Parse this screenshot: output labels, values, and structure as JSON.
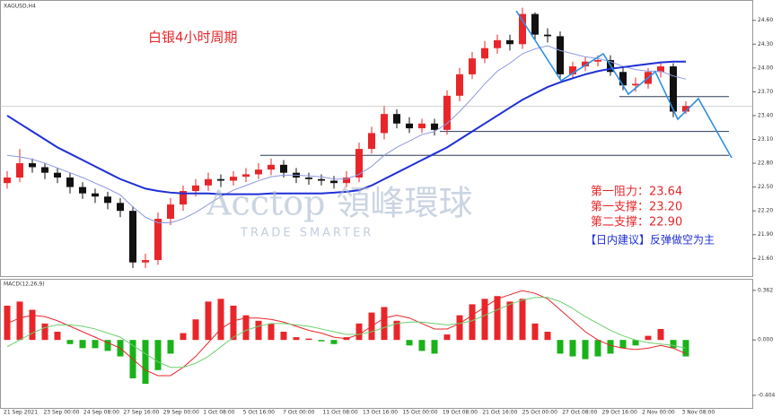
{
  "chart_data": {
    "type": "candlestick",
    "symbol": "XAGUSD,H4",
    "title": "白银4小时周期",
    "annotations": [
      "第一阻力：23.64",
      "第一支撑：23.20",
      "第二支撑：22.90",
      "【日内建议】反弹做空为主"
    ],
    "watermark": "Acctop 領峰環球",
    "watermark_sub": "TRADE SMARTER",
    "up_color": "#e8262a",
    "down_color": "#111111",
    "ylim": [
      21.4,
      24.8
    ],
    "yticks": [
      {
        "value": 21.6,
        "label": "21.60"
      },
      {
        "value": 21.9,
        "label": "21.90"
      },
      {
        "value": 22.2,
        "label": "22.20"
      },
      {
        "value": 22.5,
        "label": "22.50"
      },
      {
        "value": 22.8,
        "label": "22.80"
      },
      {
        "value": 23.1,
        "label": "23.10"
      },
      {
        "value": 23.4,
        "label": "23.40"
      },
      {
        "value": 23.7,
        "label": "23.70"
      },
      {
        "value": 24.0,
        "label": "24.00"
      },
      {
        "value": 24.3,
        "label": "24.30"
      },
      {
        "value": 24.6,
        "label": "24.60"
      }
    ],
    "levels": [
      23.64,
      23.2,
      22.9
    ],
    "level_color": "#2a3a55",
    "candles": {
      "open": [
        22.55,
        22.62,
        22.8,
        22.75,
        22.68,
        22.62,
        22.5,
        22.42,
        22.38,
        22.3,
        22.2,
        21.55,
        21.58,
        22.1,
        22.28,
        22.45,
        22.52,
        22.6,
        22.58,
        22.63,
        22.66,
        22.72,
        22.78,
        22.68,
        22.62,
        22.6,
        22.58,
        22.55,
        22.62,
        22.98,
        23.18,
        23.42,
        23.3,
        23.24,
        23.3,
        23.22,
        23.65,
        23.92,
        24.12,
        24.25,
        24.35,
        24.3,
        24.68,
        24.42,
        24.4,
        23.92,
        24.02,
        24.08,
        24.1,
        23.95,
        23.78,
        23.8,
        23.95,
        24.02,
        23.45
      ],
      "high": [
        22.7,
        22.98,
        22.86,
        22.8,
        22.74,
        22.68,
        22.56,
        22.48,
        22.44,
        22.36,
        22.26,
        21.66,
        22.18,
        22.36,
        22.52,
        22.6,
        22.68,
        22.66,
        22.7,
        22.74,
        22.8,
        22.86,
        22.84,
        22.74,
        22.68,
        22.66,
        22.64,
        22.7,
        23.06,
        23.26,
        23.52,
        23.48,
        23.38,
        23.36,
        23.36,
        23.72,
        24.0,
        24.2,
        24.34,
        24.42,
        24.42,
        24.76,
        24.7,
        24.5,
        24.46,
        24.08,
        24.14,
        24.16,
        24.16,
        24.02,
        23.88,
        24.0,
        24.08,
        24.06,
        23.58
      ],
      "low": [
        22.48,
        22.56,
        22.68,
        22.6,
        22.55,
        22.42,
        22.35,
        22.3,
        22.22,
        22.12,
        21.48,
        21.48,
        21.52,
        22.02,
        22.2,
        22.38,
        22.45,
        22.5,
        22.52,
        22.56,
        22.6,
        22.65,
        22.62,
        22.55,
        22.53,
        22.52,
        22.48,
        22.5,
        22.56,
        22.92,
        23.1,
        23.24,
        23.18,
        23.18,
        23.15,
        23.16,
        23.58,
        23.86,
        24.06,
        24.18,
        24.22,
        24.24,
        24.36,
        24.32,
        23.85,
        23.86,
        23.96,
        24.02,
        23.9,
        23.72,
        23.7,
        23.74,
        23.88,
        23.38,
        23.42
      ],
      "close": [
        22.62,
        22.8,
        22.75,
        22.68,
        22.62,
        22.5,
        22.42,
        22.38,
        22.3,
        22.2,
        21.55,
        21.58,
        22.1,
        22.28,
        22.45,
        22.52,
        22.6,
        22.58,
        22.63,
        22.66,
        22.72,
        22.78,
        22.68,
        22.62,
        22.6,
        22.58,
        22.55,
        22.62,
        22.98,
        23.18,
        23.42,
        23.3,
        23.24,
        23.3,
        23.22,
        23.65,
        23.92,
        24.12,
        24.25,
        24.35,
        24.3,
        24.68,
        24.42,
        24.4,
        23.92,
        24.02,
        24.08,
        24.1,
        23.95,
        23.78,
        23.8,
        23.95,
        24.02,
        23.45,
        23.52
      ]
    },
    "series": [
      {
        "color": "#8e97e0",
        "width": 1,
        "values": [
          22.9,
          22.88,
          22.85,
          22.8,
          22.74,
          22.68,
          22.62,
          22.55,
          22.48,
          22.4,
          22.25,
          22.12,
          22.05,
          22.05,
          22.1,
          22.18,
          22.28,
          22.38,
          22.46,
          22.52,
          22.58,
          22.63,
          22.65,
          22.65,
          22.64,
          22.63,
          22.6,
          22.6,
          22.66,
          22.76,
          22.9,
          23.0,
          23.08,
          23.16,
          23.2,
          23.3,
          23.45,
          23.62,
          23.8,
          23.96,
          24.06,
          24.18,
          24.24,
          24.28,
          24.22,
          24.18,
          24.14,
          24.12,
          24.08,
          24.02,
          23.98,
          23.96,
          23.96,
          23.9,
          23.86
        ]
      },
      {
        "color": "#1f2fd6",
        "width": 2,
        "values": [
          23.4,
          23.3,
          23.2,
          23.1,
          23.0,
          22.92,
          22.84,
          22.76,
          22.68,
          22.6,
          22.54,
          22.48,
          22.45,
          22.43,
          22.42,
          22.42,
          22.42,
          22.41,
          22.41,
          22.41,
          22.41,
          22.42,
          22.42,
          22.42,
          22.42,
          22.42,
          22.43,
          22.44,
          22.46,
          22.52,
          22.6,
          22.68,
          22.76,
          22.84,
          22.92,
          23.0,
          23.1,
          23.2,
          23.3,
          23.4,
          23.5,
          23.6,
          23.68,
          23.76,
          23.82,
          23.87,
          23.92,
          23.96,
          23.99,
          24.01,
          24.03,
          24.05,
          24.07,
          24.08,
          24.08
        ]
      }
    ],
    "macd": {
      "label": "MACD(12,26,9)",
      "ylim": [
        -0.45,
        0.4
      ],
      "yticks": [
        {
          "value": 0.362,
          "label": "0.362"
        },
        {
          "value": 0,
          "label": "0.000"
        },
        {
          "value": -0.404,
          "label": "-0.404"
        }
      ],
      "pos_color": "#e8262a",
      "neg_color": "#19b219",
      "histogram": [
        0.25,
        0.28,
        0.22,
        0.12,
        0.06,
        -0.03,
        -0.06,
        -0.06,
        -0.08,
        -0.12,
        -0.28,
        -0.32,
        -0.22,
        -0.1,
        0.05,
        0.15,
        0.28,
        0.3,
        0.25,
        0.18,
        0.14,
        0.12,
        0.06,
        0.02,
        0.01,
        -0.01,
        -0.03,
        0.02,
        0.12,
        0.2,
        0.24,
        0.14,
        -0.04,
        -0.08,
        -0.1,
        0.04,
        0.18,
        0.26,
        0.3,
        0.32,
        0.28,
        0.3,
        0.12,
        0.06,
        -0.1,
        -0.12,
        -0.14,
        -0.12,
        -0.1,
        -0.06,
        -0.04,
        0.03,
        0.08,
        -0.06,
        -0.12
      ],
      "lines": [
        {
          "color": "#e8262a",
          "values": [
            0.12,
            0.16,
            0.18,
            0.17,
            0.14,
            0.1,
            0.06,
            0.02,
            -0.02,
            -0.06,
            -0.14,
            -0.22,
            -0.26,
            -0.26,
            -0.2,
            -0.12,
            -0.02,
            0.08,
            0.14,
            0.16,
            0.16,
            0.15,
            0.13,
            0.1,
            0.07,
            0.05,
            0.02,
            0.01,
            0.04,
            0.1,
            0.16,
            0.18,
            0.16,
            0.12,
            0.08,
            0.08,
            0.12,
            0.18,
            0.24,
            0.3,
            0.33,
            0.36,
            0.34,
            0.3,
            0.22,
            0.14,
            0.06,
            0.0,
            -0.04,
            -0.06,
            -0.07,
            -0.06,
            -0.04,
            -0.06,
            -0.1
          ]
        },
        {
          "color": "#6ccf6c",
          "values": [
            -0.05,
            0.0,
            0.05,
            0.09,
            0.11,
            0.11,
            0.1,
            0.08,
            0.05,
            0.02,
            -0.04,
            -0.1,
            -0.16,
            -0.2,
            -0.2,
            -0.17,
            -0.12,
            -0.05,
            0.02,
            0.07,
            0.1,
            0.12,
            0.12,
            0.11,
            0.1,
            0.08,
            0.06,
            0.04,
            0.04,
            0.06,
            0.09,
            0.12,
            0.13,
            0.13,
            0.12,
            0.11,
            0.12,
            0.14,
            0.18,
            0.22,
            0.26,
            0.29,
            0.31,
            0.31,
            0.28,
            0.23,
            0.17,
            0.12,
            0.07,
            0.03,
            0.0,
            -0.02,
            -0.03,
            -0.04,
            -0.06
          ]
        }
      ]
    },
    "time_labels": [
      "21 Sep 2021",
      "23 Sep 00:00",
      "24 Sep 08:00",
      "27 Sep 16:00",
      "29 Sep 00:00",
      "1 Oct 08:00",
      "5 Oct 16:00",
      "7 Oct 00:00",
      "11 Oct 08:00",
      "13 Oct 16:00",
      "15 Oct 00:00",
      "19 Oct 08:00",
      "21 Oct 16:00",
      "25 Oct 00:00",
      "27 Oct 08:00",
      "29 Oct 16:00",
      "2 Nov 00:00",
      "3 Nov 08:00"
    ]
  }
}
